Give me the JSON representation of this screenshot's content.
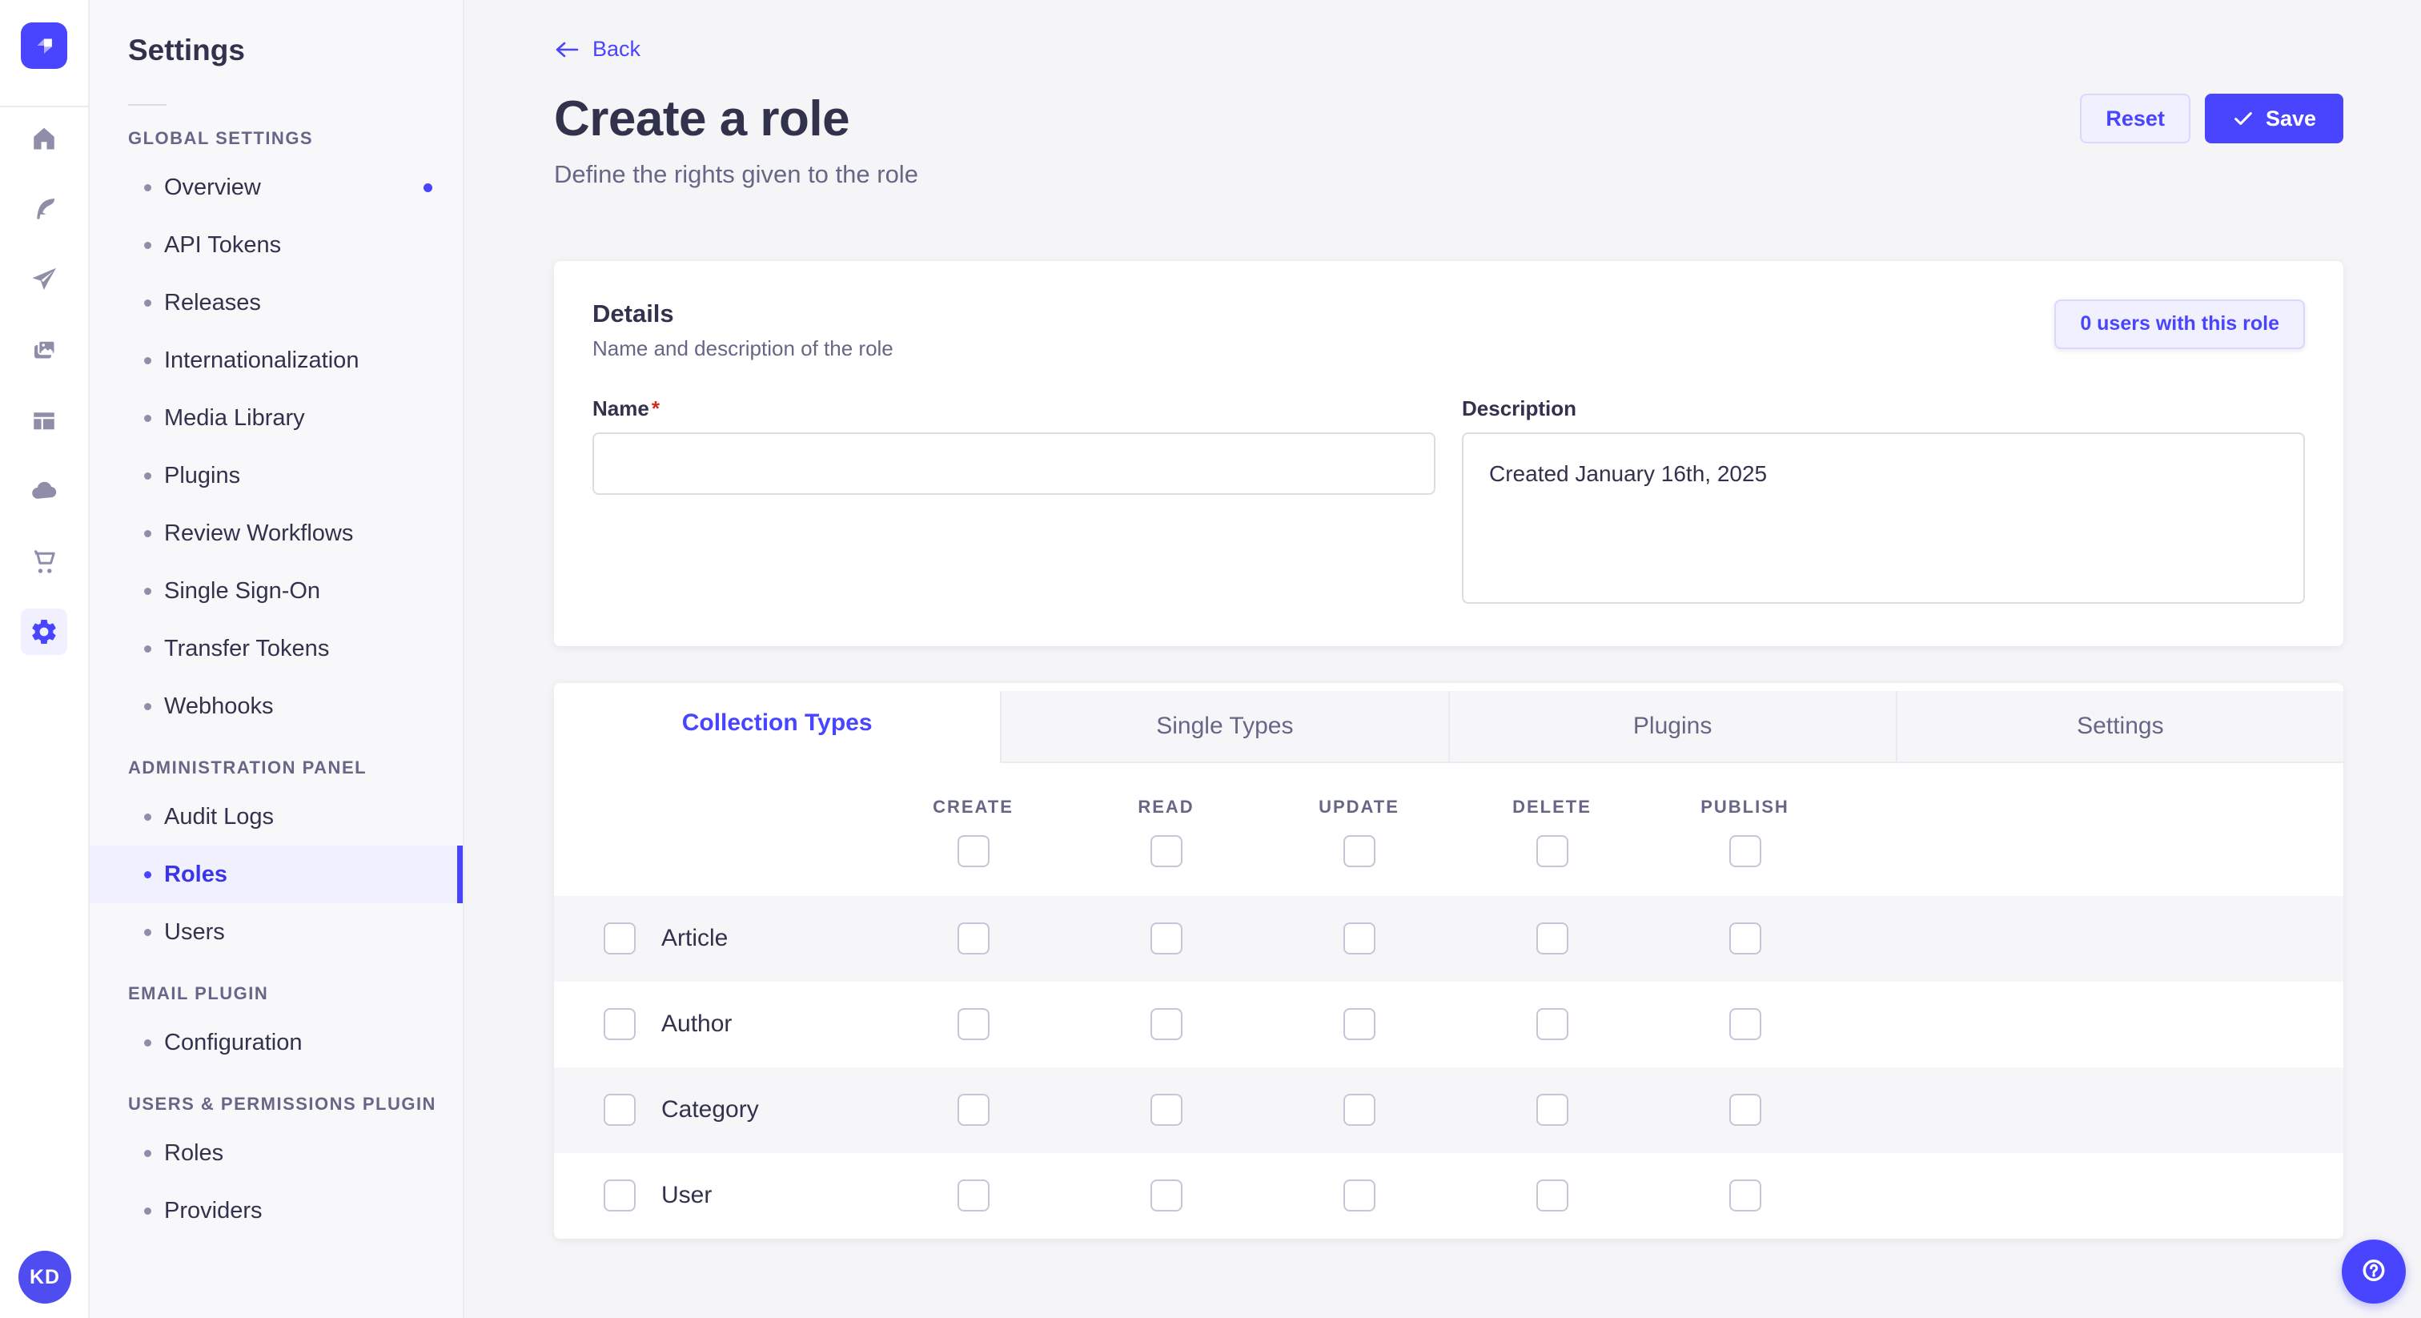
{
  "brand": {
    "logo_icon": "strapi-logo"
  },
  "rail": {
    "icons": [
      "home-icon",
      "feather-icon",
      "paper-plane-icon",
      "media-pictures-icon",
      "layout-icon",
      "cloud-icon",
      "cart-icon",
      "gear-icon"
    ],
    "active_icon": "gear-icon",
    "avatar_initials": "KD"
  },
  "subnav": {
    "title": "Settings",
    "sections": [
      {
        "label": "GLOBAL SETTINGS",
        "items": [
          {
            "label": "Overview",
            "dot": true
          },
          {
            "label": "API Tokens"
          },
          {
            "label": "Releases"
          },
          {
            "label": "Internationalization"
          },
          {
            "label": "Media Library"
          },
          {
            "label": "Plugins"
          },
          {
            "label": "Review Workflows"
          },
          {
            "label": "Single Sign-On"
          },
          {
            "label": "Transfer Tokens"
          },
          {
            "label": "Webhooks"
          }
        ]
      },
      {
        "label": "ADMINISTRATION PANEL",
        "items": [
          {
            "label": "Audit Logs"
          },
          {
            "label": "Roles",
            "active": true
          },
          {
            "label": "Users"
          }
        ]
      },
      {
        "label": "EMAIL PLUGIN",
        "items": [
          {
            "label": "Configuration"
          }
        ]
      },
      {
        "label": "USERS & PERMISSIONS PLUGIN",
        "items": [
          {
            "label": "Roles"
          },
          {
            "label": "Providers"
          }
        ]
      }
    ]
  },
  "header": {
    "back_label": "Back",
    "title": "Create a role",
    "subtitle": "Define the rights given to the role",
    "reset_label": "Reset",
    "save_label": "Save",
    "save_icon": "check-icon"
  },
  "details": {
    "title": "Details",
    "subtitle": "Name and description of the role",
    "users_button_label": "0 users with this role",
    "name_label": "Name",
    "required_mark": "*",
    "name_value": "",
    "name_placeholder": "",
    "description_label": "Description",
    "description_value": "Created January 16th, 2025"
  },
  "tabs": [
    {
      "label": "Collection Types",
      "active": true
    },
    {
      "label": "Single Types"
    },
    {
      "label": "Plugins"
    },
    {
      "label": "Settings"
    }
  ],
  "permissions": {
    "columns": [
      "CREATE",
      "READ",
      "UPDATE",
      "DELETE",
      "PUBLISH"
    ],
    "rows": [
      "Article",
      "Author",
      "Category",
      "User"
    ],
    "checked": []
  },
  "help": {
    "icon": "question-mark-icon"
  },
  "colors": {
    "accent": "#4945ff",
    "accent_light": "#f0f0ff",
    "accent_border": "#d9d8ff",
    "danger": "#d02b20",
    "text_dark": "#32324d",
    "text_gray": "#666687",
    "row_alt": "#f6f6f9"
  }
}
